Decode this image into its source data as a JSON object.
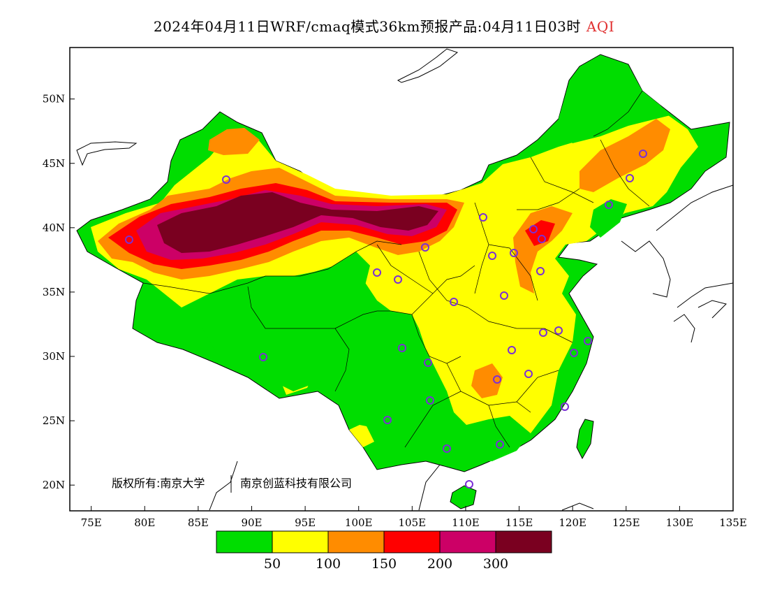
{
  "title": {
    "main": "2024年04月11日WRF/cmaq模式36km预报产品:04月11日03时",
    "variable": "AQI"
  },
  "map": {
    "lon_range": [
      73,
      135
    ],
    "lat_range": [
      18,
      54
    ],
    "lon_ticks": [
      "75E",
      "80E",
      "85E",
      "90E",
      "95E",
      "100E",
      "105E",
      "110E",
      "115E",
      "120E",
      "125E",
      "130E",
      "135E"
    ],
    "lat_ticks": [
      "20N",
      "25N",
      "30N",
      "35N",
      "40N",
      "45N",
      "50N"
    ]
  },
  "copyright": {
    "left": "版权所有:南京大学",
    "right": "南京创蓝科技有限公司"
  },
  "legend": {
    "colors": [
      "#00dd00",
      "#ffff00",
      "#ff8c00",
      "#ff0000",
      "#cc0066",
      "#7a0020"
    ],
    "labels": [
      "50",
      "100",
      "150",
      "200",
      "300"
    ]
  },
  "colors": {
    "good": "#00dd00",
    "moderate": "#ffff00",
    "usg": "#ff8c00",
    "unhealthy": "#ff0000",
    "very_unhealthy": "#cc0066",
    "hazardous": "#7a0020",
    "station_marker": "#7b2fd6"
  }
}
